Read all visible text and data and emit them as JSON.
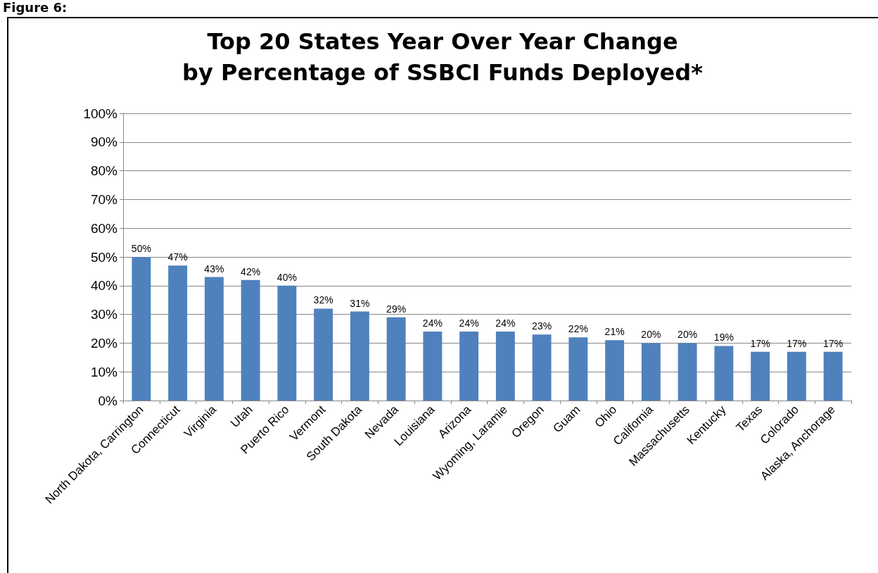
{
  "chart_data": {
    "type": "bar",
    "title": "Top 20 States Year Over Year Change\nby Percentage of SSBCI Funds Deployed*",
    "annotations": [
      "Figure 6:"
    ],
    "categories": [
      "North Dakota, Carrington",
      "Connecticut",
      "Virginia",
      "Utah",
      "Puerto Rico",
      "Vermont",
      "South Dakota",
      "Nevada",
      "Louisiana",
      "Arizona",
      "Wyoming, Laramie",
      "Oregon",
      "Guam",
      "Ohio",
      "California",
      "Massachusetts",
      "Kentucky",
      "Texas",
      "Colorado",
      "Alaska, Anchorage"
    ],
    "values": [
      50,
      47,
      43,
      42,
      40,
      32,
      31,
      29,
      24,
      24,
      24,
      23,
      22,
      21,
      20,
      20,
      19,
      17,
      17,
      17
    ],
    "value_labels": [
      "50%",
      "47%",
      "43%",
      "42%",
      "40%",
      "32%",
      "31%",
      "29%",
      "24%",
      "24%",
      "24%",
      "23%",
      "22%",
      "21%",
      "20%",
      "20%",
      "19%",
      "17%",
      "17%",
      "17%"
    ],
    "color": "#4f81bd",
    "ylim": [
      0,
      100
    ],
    "yticks": [
      {
        "value": 0,
        "label": "0%"
      },
      {
        "value": 10,
        "label": "10%"
      },
      {
        "value": 20,
        "label": "20%"
      },
      {
        "value": 30,
        "label": "30%"
      },
      {
        "value": 40,
        "label": "40%"
      },
      {
        "value": 50,
        "label": "50%"
      },
      {
        "value": 60,
        "label": "60%"
      },
      {
        "value": 70,
        "label": "70%"
      },
      {
        "value": 80,
        "label": "80%"
      },
      {
        "value": 90,
        "label": "90%"
      },
      {
        "value": 100,
        "label": "100%"
      }
    ],
    "grid": "y"
  }
}
